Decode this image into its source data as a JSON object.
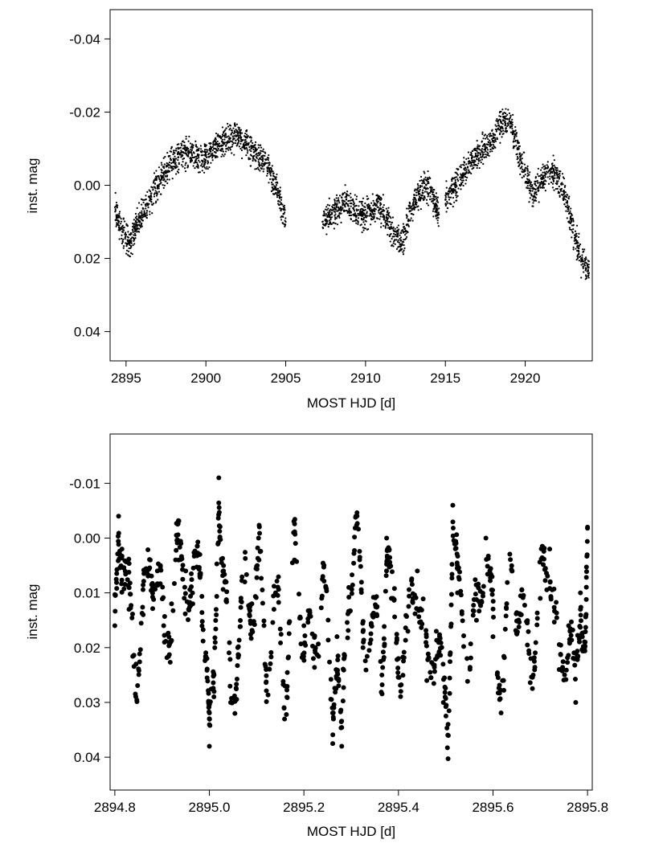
{
  "chart_data": [
    {
      "type": "scatter",
      "xlabel": "MOST HJD [d]",
      "ylabel": "inst. mag",
      "xlim": [
        2894.0,
        2924.2
      ],
      "ylim": [
        0.048,
        -0.048
      ],
      "y_inverted": true,
      "grid": false,
      "xticks": [
        2895,
        2900,
        2905,
        2910,
        2915,
        2920
      ],
      "xtick_labels": [
        "2895",
        "2900",
        "2905",
        "2910",
        "2915",
        "2920"
      ],
      "yticks": [
        -0.04,
        -0.02,
        0.0,
        0.02,
        0.04
      ],
      "ytick_labels": [
        "-0.04",
        "-0.02",
        "0.00",
        "0.02",
        "0.04"
      ],
      "marker_color": "#000000",
      "gaps": [
        [
          2905.1,
          2907.2
        ],
        [
          2914.7,
          2914.9
        ]
      ],
      "series": [
        {
          "x": [
            2894.3,
            2894.7,
            2895.2,
            2895.6,
            2896.0,
            2896.5,
            2897.0,
            2897.5,
            2898.0,
            2898.5,
            2899.0,
            2899.5,
            2900.0,
            2900.5,
            2901.0,
            2901.5,
            2902.0,
            2902.5,
            2903.0,
            2903.5,
            2904.0,
            2904.5,
            2905.0,
            2907.3,
            2907.8,
            2908.3,
            2908.8,
            2909.3,
            2909.8,
            2910.3,
            2910.8,
            2911.3,
            2911.8,
            2912.3,
            2912.8,
            2913.3,
            2913.8,
            2914.3,
            2914.6,
            2915.0,
            2915.5,
            2916.0,
            2916.5,
            2917.0,
            2917.5,
            2918.0,
            2918.5,
            2919.0,
            2919.5,
            2920.0,
            2920.5,
            2921.0,
            2921.5,
            2922.0,
            2922.5,
            2923.0,
            2923.5,
            2924.0
          ],
          "y": [
            0.006,
            0.012,
            0.016,
            0.012,
            0.008,
            0.004,
            0.0,
            -0.004,
            -0.007,
            -0.009,
            -0.009,
            -0.008,
            -0.008,
            -0.01,
            -0.012,
            -0.013,
            -0.014,
            -0.011,
            -0.009,
            -0.007,
            -0.004,
            0.002,
            0.01,
            0.01,
            0.008,
            0.006,
            0.005,
            0.007,
            0.008,
            0.007,
            0.006,
            0.009,
            0.014,
            0.016,
            0.007,
            0.002,
            0.0,
            0.004,
            0.008,
            0.004,
            0.001,
            -0.002,
            -0.006,
            -0.008,
            -0.01,
            -0.013,
            -0.017,
            -0.018,
            -0.01,
            -0.004,
            0.003,
            -0.002,
            -0.004,
            -0.002,
            0.003,
            0.012,
            0.02,
            0.024
          ]
        }
      ]
    },
    {
      "type": "scatter",
      "xlabel": "MOST HJD [d]",
      "ylabel": "inst. mag",
      "xlim": [
        2894.79,
        2895.81
      ],
      "ylim": [
        0.046,
        -0.019
      ],
      "y_inverted": true,
      "grid": false,
      "xticks": [
        2894.8,
        2895.0,
        2895.2,
        2895.4,
        2895.6,
        2895.8
      ],
      "xtick_labels": [
        "2894.8",
        "2895.0",
        "2895.2",
        "2895.4",
        "2895.6",
        "2895.8"
      ],
      "yticks": [
        -0.01,
        0.0,
        0.01,
        0.02,
        0.03,
        0.04
      ],
      "ytick_labels": [
        "-0.01",
        "0.00",
        "0.01",
        "0.02",
        "0.03",
        "0.04"
      ],
      "marker_color": "#000000",
      "series": [
        {
          "x": [
            2894.8,
            2894.808,
            2894.815,
            2894.83,
            2894.845,
            2894.86,
            2894.875,
            2894.89,
            2894.905,
            2894.92,
            2894.935,
            2894.95,
            2894.965,
            2894.98,
            2894.995,
            2895.0,
            2895.01,
            2895.02,
            2895.03,
            2895.045,
            2895.06,
            2895.075,
            2895.09,
            2895.105,
            2895.12,
            2895.14,
            2895.16,
            2895.18,
            2895.2,
            2895.22,
            2895.24,
            2895.26,
            2895.27,
            2895.28,
            2895.295,
            2895.31,
            2895.325,
            2895.345,
            2895.365,
            2895.375,
            2895.385,
            2895.4,
            2895.42,
            2895.44,
            2895.46,
            2895.48,
            2895.495,
            2895.505,
            2895.515,
            2895.525,
            2895.545,
            2895.565,
            2895.585,
            2895.6,
            2895.62,
            2895.64,
            2895.66,
            2895.68,
            2895.7,
            2895.72,
            2895.74,
            2895.76,
            2895.775,
            2895.785,
            2895.795,
            2895.8
          ],
          "y": [
            0.016,
            -0.004,
            0.002,
            0.013,
            0.023,
            0.014,
            0.004,
            0.006,
            0.019,
            0.012,
            0.004,
            0.006,
            0.012,
            0.003,
            0.022,
            0.038,
            0.028,
            -0.011,
            0.006,
            0.03,
            0.02,
            0.008,
            0.012,
            0.004,
            0.024,
            0.01,
            0.027,
            0.004,
            0.016,
            0.022,
            0.007,
            0.031,
            0.018,
            0.038,
            0.009,
            -0.004,
            0.02,
            0.014,
            0.025,
            0.0,
            0.011,
            0.022,
            0.017,
            0.006,
            0.026,
            0.017,
            0.03,
            0.034,
            -0.006,
            0.01,
            0.022,
            0.015,
            0.0,
            0.018,
            0.026,
            0.006,
            0.014,
            0.022,
            0.011,
            0.002,
            0.024,
            0.016,
            0.03,
            0.01,
            0.019,
            -0.002
          ]
        }
      ]
    }
  ]
}
